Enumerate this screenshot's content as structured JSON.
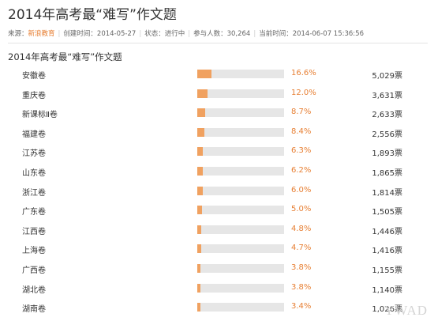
{
  "page": {
    "title": "2014年高考最“难写”作文题",
    "subtitle": "2014年高考最“难写”作文题",
    "watermark": "YWAD"
  },
  "meta": {
    "source_label": "来源：",
    "source_value": "新浪教育",
    "created": "创建时间：2014-05-27",
    "status": "状态：进行中",
    "participants": "参与人数：30,264",
    "current_time": "当前时间：2014-06-07 15:36:56"
  },
  "colors": {
    "accent": "#e77f33",
    "bar_fill": "#f0a160",
    "bar_track": "#e6e6e6"
  },
  "poll": {
    "rows": [
      {
        "name": "安徽卷",
        "pct": "16.6%",
        "votes": "5,029票",
        "fraction": 0.166
      },
      {
        "name": "重庆卷",
        "pct": "12.0%",
        "votes": "3,631票",
        "fraction": 0.12
      },
      {
        "name": "新课标Ⅱ卷",
        "pct": "8.7%",
        "votes": "2,633票",
        "fraction": 0.087
      },
      {
        "name": "福建卷",
        "pct": "8.4%",
        "votes": "2,556票",
        "fraction": 0.084
      },
      {
        "name": "江苏卷",
        "pct": "6.3%",
        "votes": "1,893票",
        "fraction": 0.063
      },
      {
        "name": "山东卷",
        "pct": "6.2%",
        "votes": "1,865票",
        "fraction": 0.062
      },
      {
        "name": "浙江卷",
        "pct": "6.0%",
        "votes": "1,814票",
        "fraction": 0.06
      },
      {
        "name": "广东卷",
        "pct": "5.0%",
        "votes": "1,505票",
        "fraction": 0.05
      },
      {
        "name": "江西卷",
        "pct": "4.8%",
        "votes": "1,446票",
        "fraction": 0.048
      },
      {
        "name": "上海卷",
        "pct": "4.7%",
        "votes": "1,416票",
        "fraction": 0.047
      },
      {
        "name": "广西卷",
        "pct": "3.8%",
        "votes": "1,155票",
        "fraction": 0.038
      },
      {
        "name": "湖北卷",
        "pct": "3.8%",
        "votes": "1,140票",
        "fraction": 0.038
      },
      {
        "name": "湖南卷",
        "pct": "3.4%",
        "votes": "1,026票",
        "fraction": 0.034
      }
    ]
  }
}
